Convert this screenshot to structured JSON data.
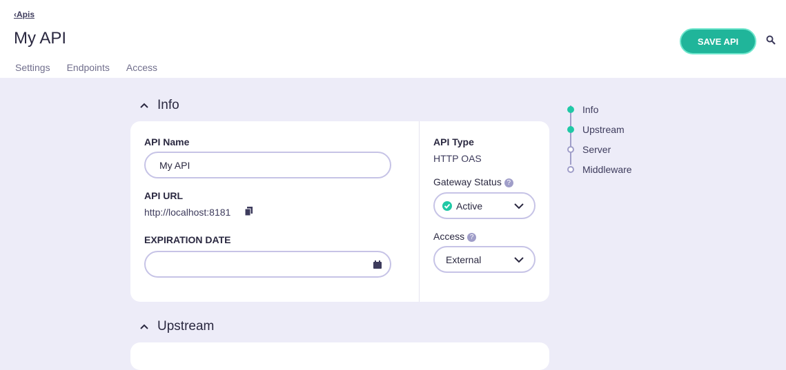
{
  "header": {
    "back_label": "Apis",
    "title": "My API",
    "tabs": [
      "Settings",
      "Endpoints",
      "Access"
    ],
    "save_label": "SAVE API"
  },
  "info": {
    "section_title": "Info",
    "api_name_label": "API Name",
    "api_name_value": "My API",
    "api_url_label": "API URL",
    "api_url_value": "http://localhost:8181",
    "expiration_label": "EXPIRATION DATE",
    "expiration_value": "",
    "api_type_label": "API Type",
    "api_type_value": "HTTP OAS",
    "gateway_status_label": "Gateway Status",
    "gateway_status_value": "Active",
    "access_label": "Access",
    "access_value": "External"
  },
  "upstream": {
    "section_title": "Upstream"
  },
  "side_nav": {
    "items": [
      {
        "label": "Info",
        "active": true
      },
      {
        "label": "Upstream",
        "active": true
      },
      {
        "label": "Server",
        "active": false
      },
      {
        "label": "Middleware",
        "active": false
      }
    ]
  },
  "colors": {
    "accent": "#20b59a",
    "background": "#edecf8"
  }
}
